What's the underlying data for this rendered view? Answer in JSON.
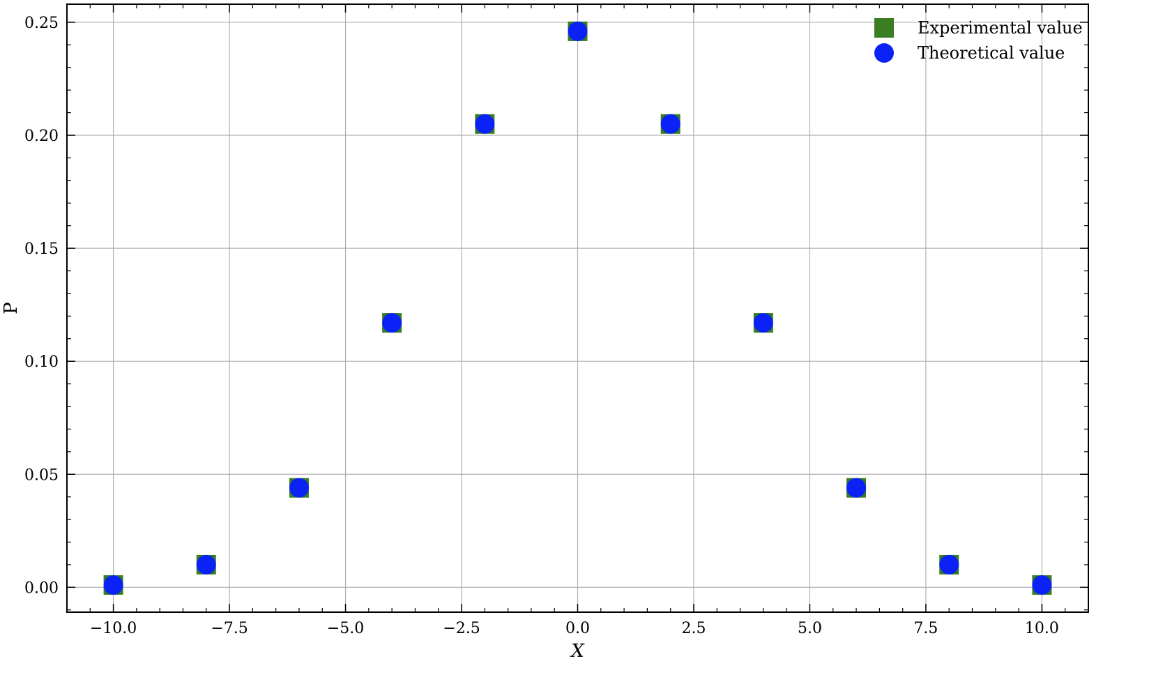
{
  "chart_data": {
    "type": "scatter",
    "title": "",
    "xlabel": "X",
    "ylabel": "P",
    "xlim": [
      -11.0,
      11.0
    ],
    "ylim": [
      -0.011,
      0.258
    ],
    "x_ticks": [
      -10.0,
      -7.5,
      -5.0,
      -2.5,
      0.0,
      2.5,
      5.0,
      7.5,
      10.0
    ],
    "x_tick_labels": [
      "−10.0",
      "−7.5",
      "−5.0",
      "−2.5",
      "0.0",
      "2.5",
      "5.0",
      "7.5",
      "10.0"
    ],
    "y_ticks": [
      0.0,
      0.05,
      0.1,
      0.15,
      0.2,
      0.25
    ],
    "y_tick_labels": [
      "0.00",
      "0.05",
      "0.10",
      "0.15",
      "0.20",
      "0.25"
    ],
    "grid": true,
    "legend_position": "top-right",
    "series": [
      {
        "name": "Experimental value",
        "marker": "square",
        "color": "#3a7d22",
        "x": [
          -10,
          -8,
          -6,
          -4,
          -2,
          0,
          2,
          4,
          6,
          8,
          10
        ],
        "y": [
          0.001,
          0.01,
          0.044,
          0.117,
          0.205,
          0.246,
          0.205,
          0.117,
          0.044,
          0.01,
          0.001
        ]
      },
      {
        "name": "Theoretical value",
        "marker": "circle",
        "color": "#0a22f5",
        "x": [
          -10,
          -8,
          -6,
          -4,
          -2,
          0,
          2,
          4,
          6,
          8,
          10
        ],
        "y": [
          0.001,
          0.01,
          0.044,
          0.117,
          0.205,
          0.246,
          0.205,
          0.117,
          0.044,
          0.01,
          0.001
        ]
      }
    ]
  }
}
